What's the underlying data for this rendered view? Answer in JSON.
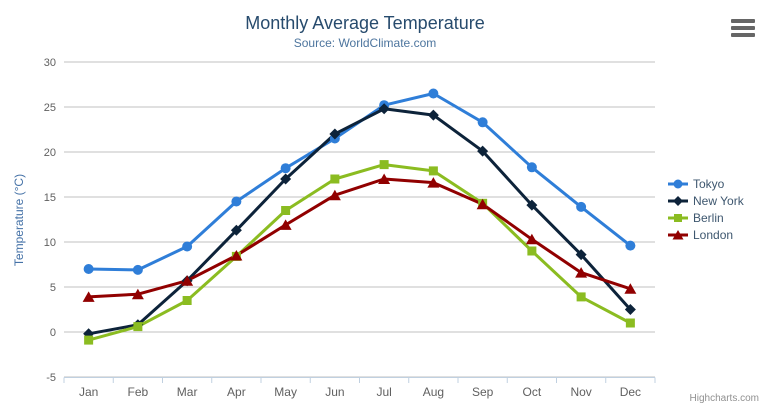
{
  "chart_data": {
    "type": "line",
    "title": "Monthly Average Temperature",
    "subtitle": "Source: WorldClimate.com",
    "xlabel": "",
    "ylabel": "Temperature (°C)",
    "categories": [
      "Jan",
      "Feb",
      "Mar",
      "Apr",
      "May",
      "Jun",
      "Jul",
      "Aug",
      "Sep",
      "Oct",
      "Nov",
      "Dec"
    ],
    "series": [
      {
        "name": "Tokyo",
        "color": "#2f7ed8",
        "marker": "circle",
        "values": [
          7.0,
          6.9,
          9.5,
          14.5,
          18.2,
          21.5,
          25.2,
          26.5,
          23.3,
          18.3,
          13.9,
          9.6
        ]
      },
      {
        "name": "New York",
        "color": "#0d233a",
        "marker": "diamond",
        "values": [
          -0.2,
          0.8,
          5.7,
          11.3,
          17.0,
          22.0,
          24.8,
          24.1,
          20.1,
          14.1,
          8.6,
          2.5
        ]
      },
      {
        "name": "Berlin",
        "color": "#8bbc21",
        "marker": "square",
        "values": [
          -0.9,
          0.6,
          3.5,
          8.4,
          13.5,
          17.0,
          18.6,
          17.9,
          14.3,
          9.0,
          3.9,
          1.0
        ]
      },
      {
        "name": "London",
        "color": "#910000",
        "marker": "triangle",
        "values": [
          3.9,
          4.2,
          5.7,
          8.5,
          11.9,
          15.2,
          17.0,
          16.6,
          14.2,
          10.3,
          6.6,
          4.8
        ]
      }
    ],
    "ylim": [
      -5,
      30
    ],
    "y_tick_interval": 5,
    "grid": true,
    "legend_position": "right",
    "colors": {
      "title": "#274b6d",
      "subtitle": "#4d759e",
      "axis_title": "#4572a7",
      "tick_label": "#606060",
      "gridline": "#c0c0c0",
      "axis_line": "#c0d0e0",
      "legend_text": "#3e576f",
      "credits": "#909090"
    }
  },
  "credits": {
    "label": "Highcharts.com"
  },
  "export_menu": {
    "icon": "hamburger-menu-icon"
  }
}
